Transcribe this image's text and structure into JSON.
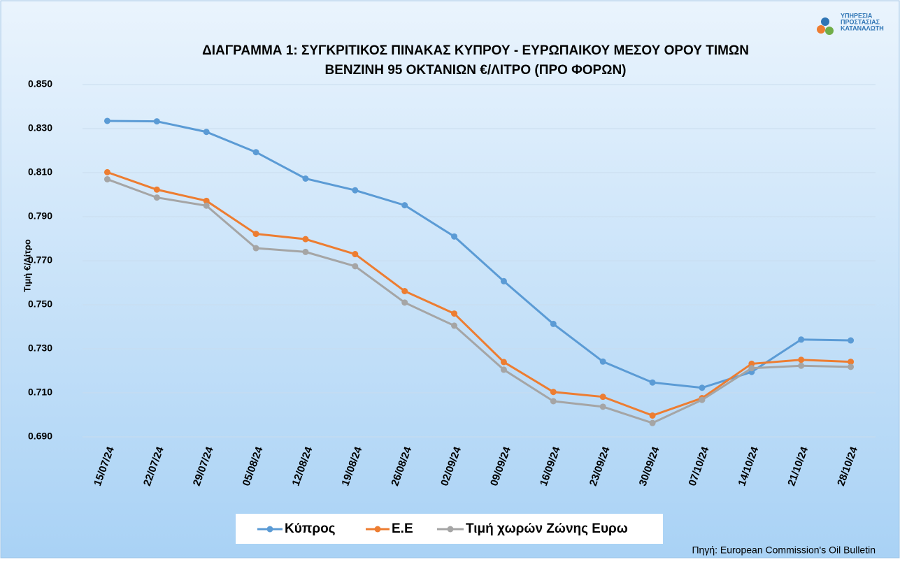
{
  "chart_data": {
    "type": "line",
    "title": "ΔΙΑΓΡΑΜΜΑ 1: ΣΥΓΚΡΙΤΙΚΟΣ ΠΙΝΑΚΑΣ ΚΥΠΡΟΥ - ΕΥΡΩΠΑΙΚΟΥ ΜΕΣΟΥ ΟΡΟΥ ΤΙΜΩΝ",
    "subtitle": "ΒΕΝΖΙΝΗ 95 ΟΚΤΑΝΙΩΝ €/ΛΙΤΡΟ (ΠΡΟ ΦΟΡΩΝ)",
    "y_label": "Τιμή €/Λίτρο",
    "source": "Πηγή: European Commission's Oil Bulletin",
    "logo": [
      "ΥΠΗΡΕΣΙΑ",
      "ΠΡΟΣΤΑΣΙΑΣ",
      "ΚΑΤΑΝΑΛΩΤΗ"
    ],
    "categories": [
      "15/07/24",
      "22/07/24",
      "29/07/24",
      "05/08/24",
      "12/08/24",
      "19/08/24",
      "26/08/24",
      "02/09/24",
      "09/09/24",
      "16/09/24",
      "23/09/24",
      "30/09/24",
      "07/10/24",
      "14/10/24",
      "21/10/24",
      "28/10/24"
    ],
    "series": [
      {
        "name": "Κύπρος",
        "color": "#5b9bd5",
        "values": [
          0.8335,
          0.8333,
          0.8285,
          0.8193,
          0.8073,
          0.802,
          0.7952,
          0.781,
          0.7607,
          0.7413,
          0.7242,
          0.7147,
          0.7123,
          0.7195,
          0.7342,
          0.7338
        ]
      },
      {
        "name": "Ε.Ε",
        "color": "#ed7d31",
        "values": [
          0.8102,
          0.8023,
          0.7972,
          0.7822,
          0.7798,
          0.773,
          0.7562,
          0.746,
          0.724,
          0.7104,
          0.7082,
          0.6997,
          0.7076,
          0.7232,
          0.725,
          0.7241
        ]
      },
      {
        "name": "Τιμή χωρών Ζώνης Ευρω",
        "color": "#a5a5a5",
        "values": [
          0.807,
          0.7987,
          0.795,
          0.7757,
          0.774,
          0.7675,
          0.751,
          0.7405,
          0.7205,
          0.7062,
          0.7037,
          0.6963,
          0.7068,
          0.7212,
          0.7223,
          0.7218
        ]
      }
    ],
    "ylim": [
      0.69,
      0.85
    ],
    "yticks": [
      {
        "value": 0.69,
        "label": "0.690"
      },
      {
        "value": 0.71,
        "label": "0.710"
      },
      {
        "value": 0.73,
        "label": "0.730"
      },
      {
        "value": 0.75,
        "label": "0.750"
      },
      {
        "value": 0.77,
        "label": "0.770"
      },
      {
        "value": 0.79,
        "label": "0.790"
      },
      {
        "value": 0.81,
        "label": "0.810"
      },
      {
        "value": 0.83,
        "label": "0.830"
      },
      {
        "value": 0.85,
        "label": "0.850"
      }
    ],
    "grid": true,
    "legend": "bottom"
  }
}
